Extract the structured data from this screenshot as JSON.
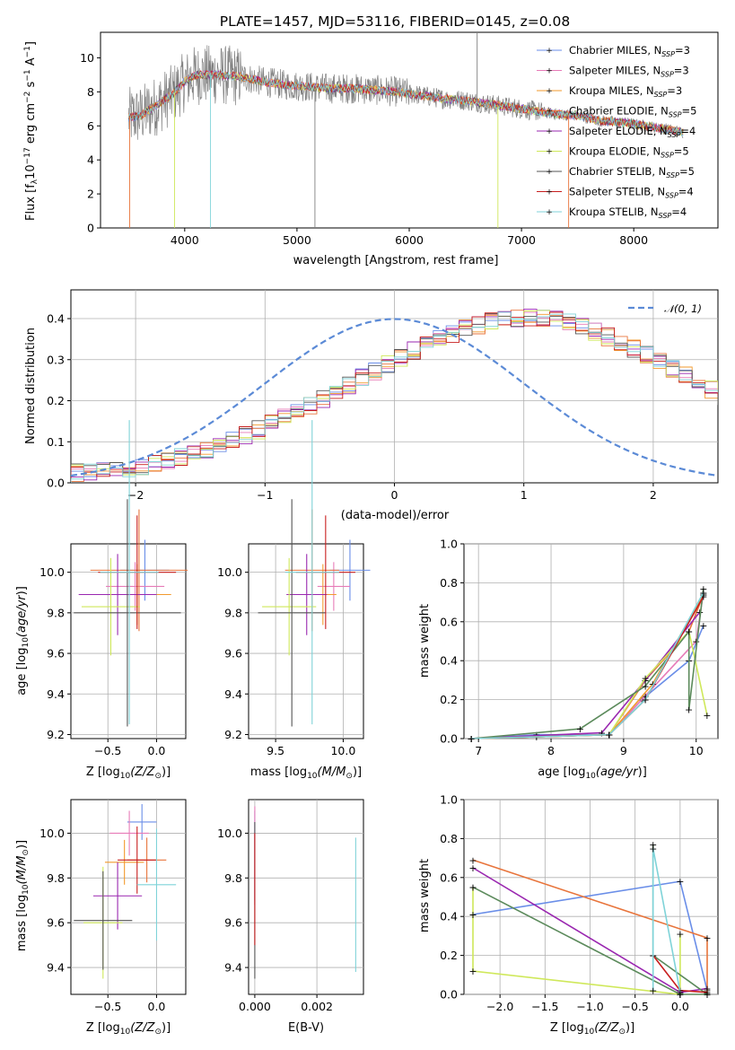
{
  "title": "PLATE=1457, MJD=53116, FIBERID=0145, z=0.08",
  "colors": {
    "Chabrier MILES": "#6a8ee8",
    "Salpeter MILES": "#e77bb8",
    "Kroupa MILES": "#f29a2e",
    "Chabrier ELODIE": "#e8743b",
    "Salpeter ELODIE": "#9a27b0",
    "Kroupa ELODIE": "#cfe85a",
    "Chabrier STELIB": "#555555",
    "Salpeter STELIB": "#c81e1e",
    "Kroupa STELIB": "#7fd3d8",
    "data_spectrum": "#808080",
    "ELODIE_line": "#5b8a5b",
    "normal": "#5b8ad6"
  },
  "panels": {
    "spectrum": {
      "xlabel": "wavelength [Angstrom, rest frame]",
      "ylabel": "Flux [f",
      "ylabel_sub": "λ",
      "ylabel_rest": "10",
      "ylabel_exp": "−17",
      "ylabel_tail": " erg cm",
      "ylabel_exp2": "−2",
      "ylabel_tail2": " s",
      "ylabel_exp3": "−1",
      "ylabel_tail3": " A",
      "ylabel_exp4": "−1",
      "ylabel_end": "]",
      "xticks": [
        "4000",
        "5000",
        "6000",
        "7000",
        "8000"
      ],
      "yticks": [
        "0",
        "2",
        "4",
        "6",
        "8",
        "10"
      ],
      "legend": [
        {
          "name": "Chabrier MILES",
          "nssp": "3"
        },
        {
          "name": "Salpeter MILES",
          "nssp": "3"
        },
        {
          "name": "Kroupa MILES",
          "nssp": "3"
        },
        {
          "name": "Chabrier ELODIE",
          "nssp": "5"
        },
        {
          "name": "Salpeter ELODIE",
          "nssp": "4"
        },
        {
          "name": "Kroupa ELODIE",
          "nssp": "5"
        },
        {
          "name": "Chabrier STELIB",
          "nssp": "5"
        },
        {
          "name": "Salpeter STELIB",
          "nssp": "4"
        },
        {
          "name": "Kroupa STELIB",
          "nssp": "4"
        }
      ],
      "legend_nssp_prefix": "N",
      "legend_nssp_sub": "SSP"
    },
    "histogram": {
      "xlabel": "(data-model)/error",
      "ylabel": "Normed distribution",
      "xticks": [
        "−2",
        "−1",
        "0",
        "1",
        "2"
      ],
      "yticks": [
        "0.0",
        "0.1",
        "0.2",
        "0.3",
        "0.4"
      ],
      "legend_label": "𝒩(0, 1)"
    },
    "age_vs_Z": {
      "xlabel": "Z [log",
      "ylabel": "age  [log",
      "xticks": [
        "−0.5",
        "0.0"
      ],
      "yticks": [
        "9.2",
        "9.4",
        "9.6",
        "9.8",
        "10.0"
      ]
    },
    "age_vs_mass": {
      "xlabel": "mass [log",
      "xticks": [
        "9.5",
        "10.0"
      ],
      "yticks": [
        "9.2",
        "9.4",
        "9.6",
        "9.8",
        "10.0"
      ]
    },
    "weight_vs_age": {
      "xlabel": "age  [log",
      "ylabel": "mass weight",
      "xticks": [
        "7",
        "8",
        "9",
        "10"
      ],
      "yticks": [
        "0.0",
        "0.2",
        "0.4",
        "0.6",
        "0.8",
        "1.0"
      ]
    },
    "mass_vs_Z": {
      "xlabel": "Z [log",
      "ylabel": "mass [log",
      "xticks": [
        "−0.5",
        "0.0"
      ],
      "yticks": [
        "9.4",
        "9.6",
        "9.8",
        "10.0"
      ]
    },
    "mass_vs_ebv": {
      "xlabel": "E(B-V)",
      "xticks": [
        "0.000",
        "0.002"
      ],
      "yticks": [
        "9.4",
        "9.6",
        "9.8",
        "10.0"
      ]
    },
    "weight_vs_Z": {
      "xlabel": "Z [log",
      "ylabel": "mass weight",
      "xticks": [
        "−2.0",
        "−1.5",
        "−1.0",
        "−0.5",
        "0.0"
      ],
      "yticks": [
        "0.0",
        "0.2",
        "0.4",
        "0.6",
        "0.8",
        "1.0"
      ]
    }
  },
  "chart_data": [
    {
      "type": "line",
      "title": "PLATE=1457, MJD=53116, FIBERID=0145, z=0.08",
      "xlabel": "wavelength [Angstrom, rest frame]",
      "ylabel": "Flux [f_λ 10^-17 erg cm^-2 s^-1 A^-1]",
      "xlim": [
        3250,
        8750
      ],
      "ylim": [
        0,
        11.5
      ],
      "legend_position": "right",
      "series_note": "observed spectrum (grey) with nine model fits overlaid",
      "model_continuum": {
        "x": [
          3500,
          3600,
          3750,
          3900,
          4000,
          4100,
          4300,
          4500,
          4700,
          4900,
          5100,
          5300,
          5500,
          5700,
          5900,
          6100,
          6300,
          6500,
          6700,
          6900,
          7100,
          7300,
          7500,
          7700,
          7900,
          8100,
          8300,
          8450
        ],
        "y": [
          6.5,
          6.6,
          7.2,
          7.9,
          8.6,
          9.0,
          9.0,
          8.9,
          8.6,
          8.4,
          8.3,
          8.2,
          8.2,
          8.1,
          8.0,
          7.8,
          7.6,
          7.5,
          7.3,
          7.1,
          6.9,
          6.7,
          6.6,
          6.3,
          6.2,
          6.0,
          5.8,
          5.6
        ]
      },
      "series": [
        {
          "name": "Chabrier MILES, N_SSP=3"
        },
        {
          "name": "Salpeter MILES, N_SSP=3"
        },
        {
          "name": "Kroupa MILES, N_SSP=3"
        },
        {
          "name": "Chabrier ELODIE, N_SSP=5"
        },
        {
          "name": "Salpeter ELODIE, N_SSP=4"
        },
        {
          "name": "Kroupa ELODIE, N_SSP=5"
        },
        {
          "name": "Chabrier STELIB, N_SSP=5"
        },
        {
          "name": "Salpeter STELIB, N_SSP=4"
        },
        {
          "name": "Kroupa STELIB, N_SSP=4"
        }
      ]
    },
    {
      "type": "bar",
      "xlabel": "(data-model)/error",
      "ylabel": "Normed distribution",
      "xlim": [
        -2.5,
        2.5
      ],
      "ylim": [
        0,
        0.47
      ],
      "legend_position": "top-right",
      "bin_width": 0.1,
      "bin_start": -2.5,
      "envelope": [
        0.025,
        0.028,
        0.03,
        0.033,
        0.037,
        0.042,
        0.048,
        0.055,
        0.063,
        0.072,
        0.082,
        0.092,
        0.104,
        0.116,
        0.129,
        0.143,
        0.158,
        0.173,
        0.189,
        0.205,
        0.222,
        0.239,
        0.256,
        0.273,
        0.29,
        0.306,
        0.322,
        0.337,
        0.351,
        0.364,
        0.375,
        0.384,
        0.392,
        0.398,
        0.401,
        0.402,
        0.4,
        0.396,
        0.389,
        0.38,
        0.369,
        0.356,
        0.342,
        0.327,
        0.311,
        0.295,
        0.278,
        0.261,
        0.244,
        0.227,
        0.211,
        0.195,
        0.18,
        0.165,
        0.151,
        0.138,
        0.125,
        0.113,
        0.102,
        0.092,
        0.082,
        0.073,
        0.065,
        0.058,
        0.052,
        0.047,
        0.042,
        0.038,
        0.034,
        0.031,
        0.028,
        0.026,
        0.024,
        0.022,
        0.021
      ],
      "normal_curve": {
        "mu": 0,
        "sigma": 1
      }
    },
    {
      "type": "scatter",
      "xlabel": "Z [log10(Z/Z⊙)]",
      "ylabel": "age [log10(age/yr)]",
      "xlim": [
        -0.88,
        0.3
      ],
      "ylim": [
        9.18,
        10.14
      ],
      "points": [
        {
          "series": "Chabrier MILES",
          "x": -0.12,
          "y": 10.01,
          "xerr": 0.25,
          "yerr": 0.15
        },
        {
          "series": "Salpeter MILES",
          "x": -0.22,
          "y": 9.93,
          "xerr": 0.3,
          "yerr": 0.12
        },
        {
          "series": "Kroupa MILES",
          "x": -0.2,
          "y": 9.89,
          "xerr": 0.35,
          "yerr": 0.15
        },
        {
          "series": "Chabrier ELODIE",
          "x": -0.18,
          "y": 10.01,
          "xerr": 0.5,
          "yerr": 0.3
        },
        {
          "series": "Salpeter ELODIE",
          "x": -0.4,
          "y": 9.89,
          "xerr": 0.4,
          "yerr": 0.2
        },
        {
          "series": "Kroupa ELODIE",
          "x": -0.47,
          "y": 9.83,
          "xerr": 0.3,
          "yerr": 0.24
        },
        {
          "series": "Chabrier STELIB",
          "x": -0.3,
          "y": 9.8,
          "xerr": 0.55,
          "yerr": 0.56
        },
        {
          "series": "Salpeter STELIB",
          "x": -0.2,
          "y": 10.0,
          "xerr": 0.4,
          "yerr": 0.28
        },
        {
          "series": "Kroupa STELIB",
          "x": -0.28,
          "y": 10.0,
          "xerr": 0.3,
          "yerr": 0.75
        }
      ]
    },
    {
      "type": "scatter",
      "xlabel": "mass [log10(M/M⊙)]",
      "xlim": [
        9.3,
        10.15
      ],
      "ylim": [
        9.18,
        10.14
      ],
      "points": [
        {
          "series": "Chabrier MILES",
          "x": 10.05,
          "y": 10.01,
          "xerr": 0.15,
          "yerr": 0.15
        },
        {
          "series": "Salpeter MILES",
          "x": 9.93,
          "y": 9.93,
          "xerr": 0.12,
          "yerr": 0.12
        },
        {
          "series": "Kroupa MILES",
          "x": 9.85,
          "y": 9.89,
          "xerr": 0.1,
          "yerr": 0.15
        },
        {
          "series": "Chabrier ELODIE",
          "x": 9.77,
          "y": 10.01,
          "xerr": 0.2,
          "yerr": 0.3
        },
        {
          "series": "Salpeter ELODIE",
          "x": 9.73,
          "y": 9.89,
          "xerr": 0.15,
          "yerr": 0.2
        },
        {
          "series": "Kroupa ELODIE",
          "x": 9.6,
          "y": 9.83,
          "xerr": 0.2,
          "yerr": 0.24
        },
        {
          "series": "Chabrier STELIB",
          "x": 9.62,
          "y": 9.8,
          "xerr": 0.25,
          "yerr": 0.56
        },
        {
          "series": "Salpeter STELIB",
          "x": 9.87,
          "y": 10.0,
          "xerr": 0.22,
          "yerr": 0.28
        },
        {
          "series": "Kroupa STELIB",
          "x": 9.77,
          "y": 10.0,
          "xerr": 0.2,
          "yerr": 0.75
        }
      ]
    },
    {
      "type": "line",
      "xlabel": "age [log10(age/yr)]",
      "ylabel": "mass weight",
      "xlim": [
        6.8,
        10.3
      ],
      "ylim": [
        0,
        1.0
      ],
      "series": [
        {
          "name": "Chabrier MILES",
          "x": [
            6.9,
            7.8,
            8.8,
            9.25,
            9.9,
            10.1
          ],
          "y": [
            0.0,
            0.02,
            0.02,
            0.2,
            0.4,
            0.58
          ]
        },
        {
          "name": "Salpeter MILES",
          "x": [
            6.9,
            7.8,
            8.8,
            9.3,
            10.0,
            10.1
          ],
          "y": [
            0.0,
            0.01,
            0.02,
            0.22,
            0.5,
            0.75
          ]
        },
        {
          "name": "Kroupa MILES",
          "x": [
            6.9,
            8.8,
            9.4,
            10.1
          ],
          "y": [
            0.0,
            0.02,
            0.28,
            0.74
          ]
        },
        {
          "name": "Chabrier ELODIE",
          "x": [
            6.9,
            8.8,
            9.3,
            9.9,
            10.1
          ],
          "y": [
            0.0,
            0.02,
            0.3,
            0.55,
            0.74
          ]
        },
        {
          "name": "Salpeter ELODIE",
          "x": [
            6.9,
            8.7,
            9.3,
            10.05
          ],
          "y": [
            0.0,
            0.03,
            0.3,
            0.65
          ]
        },
        {
          "name": "Kroupa ELODIE",
          "x": [
            6.9,
            8.8,
            9.3,
            9.9,
            10.15
          ],
          "y": [
            0.0,
            0.02,
            0.31,
            0.55,
            0.12
          ]
        },
        {
          "name": "Chabrier STELIB",
          "x": [
            6.9,
            8.4,
            9.3,
            9.9,
            9.9,
            10.1
          ],
          "y": [
            0.0,
            0.05,
            0.27,
            0.55,
            0.15,
            0.77
          ]
        },
        {
          "name": "Salpeter STELIB",
          "x": [
            6.9,
            8.8,
            9.3,
            10.1
          ],
          "y": [
            0.0,
            0.02,
            0.2,
            0.73
          ]
        },
        {
          "name": "Kroupa STELIB",
          "x": [
            6.9,
            8.8,
            9.3,
            10.1
          ],
          "y": [
            0.0,
            0.02,
            0.2,
            0.75
          ]
        }
      ]
    },
    {
      "type": "scatter",
      "xlabel": "Z [log10(Z/Z⊙)]",
      "ylabel": "mass [log10(M/M⊙)]",
      "xlim": [
        -0.88,
        0.3
      ],
      "ylim": [
        9.28,
        10.15
      ],
      "points": [
        {
          "series": "Chabrier MILES",
          "x": -0.15,
          "y": 10.05,
          "xerr": 0.15,
          "yerr": 0.08
        },
        {
          "series": "Salpeter MILES",
          "x": -0.28,
          "y": 10.0,
          "xerr": 0.2,
          "yerr": 0.1
        },
        {
          "series": "Kroupa MILES",
          "x": -0.33,
          "y": 9.87,
          "xerr": 0.2,
          "yerr": 0.1
        },
        {
          "series": "Chabrier ELODIE",
          "x": -0.1,
          "y": 9.88,
          "xerr": 0.2,
          "yerr": 0.1
        },
        {
          "series": "Salpeter ELODIE",
          "x": -0.4,
          "y": 9.72,
          "xerr": 0.25,
          "yerr": 0.15
        },
        {
          "series": "Kroupa ELODIE",
          "x": -0.55,
          "y": 9.6,
          "xerr": 0.2,
          "yerr": 0.25
        },
        {
          "series": "Chabrier STELIB",
          "x": -0.55,
          "y": 9.61,
          "xerr": 0.3,
          "yerr": 0.22
        },
        {
          "series": "Salpeter STELIB",
          "x": -0.2,
          "y": 9.88,
          "xerr": 0.2,
          "yerr": 0.15
        },
        {
          "series": "Kroupa STELIB",
          "x": 0.0,
          "y": 9.77,
          "xerr": 0.2,
          "yerr": 0.25
        }
      ]
    },
    {
      "type": "scatter",
      "xlabel": "E(B-V)",
      "xlim": [
        -0.0002,
        0.0035
      ],
      "ylim": [
        9.28,
        10.15
      ],
      "points": [
        {
          "series": "Chabrier MILES",
          "x": 0.0,
          "y": 9.9,
          "yerr": 0.2
        },
        {
          "series": "Salpeter MILES",
          "x": 0.0,
          "y": 9.9,
          "yerr": 0.22
        },
        {
          "series": "Chabrier STELIB",
          "x": 0.0,
          "y": 9.7,
          "yerr": 0.35
        },
        {
          "series": "Salpeter STELIB",
          "x": 0.0,
          "y": 9.75,
          "yerr": 0.25
        },
        {
          "series": "Kroupa STELIB",
          "x": 0.00325,
          "y": 9.68,
          "yerr": 0.3
        }
      ]
    },
    {
      "type": "line",
      "xlabel": "Z [log10(Z/Z⊙)]",
      "ylabel": "mass weight",
      "xlim": [
        -2.4,
        0.42
      ],
      "ylim": [
        0,
        1.0
      ],
      "series": [
        {
          "name": "Chabrier MILES",
          "x": [
            -2.3,
            0.0,
            0.3
          ],
          "y": [
            0.41,
            0.58,
            0.02
          ]
        },
        {
          "name": "Chabrier ELODIE",
          "x": [
            -2.3,
            0.3,
            0.3
          ],
          "y": [
            0.69,
            0.29,
            0.0
          ]
        },
        {
          "name": "Salpeter ELODIE",
          "x": [
            -2.3,
            0.0,
            0.3
          ],
          "y": [
            0.65,
            0.01,
            0.03
          ]
        },
        {
          "name": "Kroupa ELODIE",
          "x": [
            -2.3,
            -2.3,
            -2.3,
            0.0,
            0.0
          ],
          "y": [
            0.55,
            0.41,
            0.12,
            0.0,
            0.31
          ]
        },
        {
          "name": "Chabrier STELIB",
          "x": [
            -2.3,
            0.0,
            0.3,
            -0.3,
            -0.3
          ],
          "y": [
            0.55,
            0.0,
            0.0,
            0.2,
            0.77
          ]
        },
        {
          "name": "Salpeter STELIB",
          "x": [
            -0.3,
            0.0,
            0.3
          ],
          "y": [
            0.2,
            0.02,
            0.01
          ]
        },
        {
          "name": "Kroupa STELIB",
          "x": [
            -0.3,
            -0.3,
            0.0
          ],
          "y": [
            0.02,
            0.75,
            0.01
          ]
        }
      ]
    }
  ]
}
